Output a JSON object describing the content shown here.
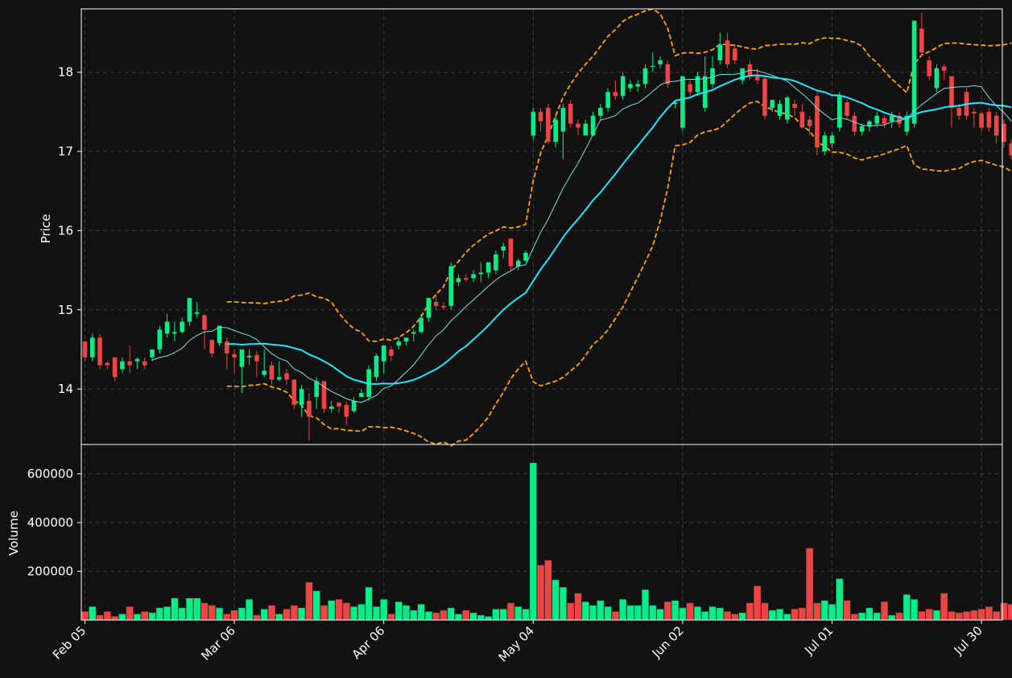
{
  "chart_data": {
    "type": "candlestick",
    "ylabel_price": "Price",
    "ylabel_volume": "Volume",
    "price_ylim": [
      13.3,
      18.8
    ],
    "price_yticks": [
      "14",
      "15",
      "16",
      "17",
      "18"
    ],
    "volume_ylim": [
      0,
      720000
    ],
    "volume_yticks": [
      "200000",
      "400000",
      "600000"
    ],
    "x_tick_labels": [
      "Feb 05",
      "Mar 06",
      "Apr 06",
      "May 04",
      "Jun 02",
      "Jul 01",
      "Jul 30"
    ],
    "x_tick_index": [
      0,
      20,
      40,
      60,
      80,
      100,
      120
    ],
    "grid": true,
    "colors": {
      "background": "#111111",
      "up": "#00ee88",
      "down": "#ee4444",
      "ma_fast": "#7fe0e0",
      "ma_slow": "#22e6ff",
      "bands": "#ffa500",
      "grid": "#3a3a3a",
      "frame": "#ffffff"
    },
    "candles": [
      [
        14.6,
        14.4,
        14.6,
        14.35
      ],
      [
        14.4,
        14.65,
        14.7,
        14.35
      ],
      [
        14.65,
        14.3,
        14.7,
        14.25
      ],
      [
        14.33,
        14.3,
        14.35,
        14.25
      ],
      [
        14.4,
        14.15,
        14.4,
        14.1
      ],
      [
        14.25,
        14.35,
        14.4,
        14.2
      ],
      [
        14.35,
        14.3,
        14.55,
        14.2
      ],
      [
        14.35,
        14.38,
        14.4,
        14.25
      ],
      [
        14.35,
        14.3,
        14.4,
        14.25
      ],
      [
        14.4,
        14.5,
        14.5,
        14.35
      ],
      [
        14.5,
        14.75,
        14.8,
        14.45
      ],
      [
        14.7,
        14.85,
        14.95,
        14.65
      ],
      [
        14.7,
        14.72,
        14.85,
        14.6
      ],
      [
        14.72,
        14.85,
        14.9,
        14.7
      ],
      [
        14.85,
        15.15,
        15.15,
        14.8
      ],
      [
        14.95,
        14.97,
        15.1,
        14.9
      ],
      [
        14.93,
        14.75,
        14.95,
        14.5
      ],
      [
        14.62,
        14.45,
        14.62,
        14.4
      ],
      [
        14.58,
        14.8,
        14.8,
        14.55
      ],
      [
        14.6,
        14.45,
        14.65,
        14.25
      ],
      [
        14.44,
        14.4,
        14.5,
        14.2
      ],
      [
        14.28,
        14.5,
        14.5,
        13.95
      ],
      [
        14.4,
        14.42,
        14.5,
        14.3
      ],
      [
        14.43,
        14.35,
        14.48,
        14.15
      ],
      [
        14.18,
        14.23,
        14.5,
        14.15
      ],
      [
        14.3,
        14.12,
        14.35,
        14.05
      ],
      [
        14.12,
        14.15,
        14.35,
        14.1
      ],
      [
        14.2,
        14.12,
        14.25,
        14.05
      ],
      [
        14.12,
        13.8,
        14.12,
        13.75
      ],
      [
        13.8,
        14.0,
        14.05,
        13.65
      ],
      [
        13.85,
        13.65,
        13.95,
        13.35
      ],
      [
        13.9,
        14.1,
        14.15,
        13.75
      ],
      [
        14.1,
        13.75,
        14.1,
        13.7
      ],
      [
        13.75,
        13.78,
        13.85,
        13.7
      ],
      [
        13.83,
        13.78,
        13.8,
        13.7
      ],
      [
        13.8,
        13.65,
        13.85,
        13.55
      ],
      [
        13.72,
        13.85,
        13.9,
        13.7
      ],
      [
        13.9,
        13.95,
        14.0,
        13.9
      ],
      [
        13.9,
        14.25,
        14.3,
        13.85
      ],
      [
        14.15,
        14.42,
        14.45,
        14.1
      ],
      [
        14.35,
        14.55,
        14.55,
        14.2
      ],
      [
        14.5,
        14.42,
        14.55,
        14.35
      ],
      [
        14.55,
        14.6,
        14.65,
        14.5
      ],
      [
        14.6,
        14.65,
        14.65,
        14.55
      ],
      [
        14.7,
        14.72,
        14.75,
        14.6
      ],
      [
        14.72,
        14.9,
        14.95,
        14.7
      ],
      [
        14.9,
        15.15,
        15.15,
        14.85
      ],
      [
        15.1,
        15.05,
        15.2,
        15.0
      ],
      [
        15.05,
        15.03,
        15.1,
        15.0
      ],
      [
        15.05,
        15.55,
        15.6,
        15.0
      ],
      [
        15.35,
        15.4,
        15.45,
        15.3
      ],
      [
        15.4,
        15.38,
        15.45,
        15.35
      ],
      [
        15.4,
        15.45,
        15.5,
        15.35
      ],
      [
        15.45,
        15.47,
        15.6,
        15.35
      ],
      [
        15.47,
        15.6,
        15.6,
        15.4
      ],
      [
        15.5,
        15.7,
        15.75,
        15.45
      ],
      [
        15.75,
        15.8,
        15.85,
        15.65
      ],
      [
        15.9,
        15.55,
        15.9,
        15.5
      ],
      [
        15.55,
        15.62,
        15.65,
        15.5
      ],
      [
        15.62,
        15.72,
        15.75,
        15.6
      ],
      [
        17.2,
        17.5,
        17.55,
        17.15
      ],
      [
        17.5,
        17.38,
        17.55,
        17.25
      ],
      [
        17.55,
        17.12,
        17.6,
        17.1
      ],
      [
        17.12,
        17.4,
        17.45,
        17.05
      ],
      [
        17.25,
        17.55,
        17.6,
        16.9
      ],
      [
        17.6,
        17.35,
        17.65,
        17.3
      ],
      [
        17.35,
        17.3,
        17.4,
        17.2
      ],
      [
        17.2,
        17.35,
        17.4,
        17.2
      ],
      [
        17.2,
        17.45,
        17.5,
        17.2
      ],
      [
        17.45,
        17.55,
        17.6,
        17.4
      ],
      [
        17.55,
        17.75,
        17.8,
        17.5
      ],
      [
        17.75,
        17.7,
        17.9,
        17.65
      ],
      [
        17.7,
        17.95,
        18.0,
        17.65
      ],
      [
        17.8,
        17.85,
        17.9,
        17.75
      ],
      [
        17.82,
        17.85,
        17.9,
        17.75
      ],
      [
        17.85,
        18.05,
        18.1,
        17.8
      ],
      [
        18.07,
        18.08,
        18.25,
        18.0
      ],
      [
        18.1,
        18.15,
        18.2,
        18.05
      ],
      [
        18.1,
        17.85,
        18.15,
        17.8
      ],
      [
        17.6,
        17.62,
        17.65,
        17.55
      ],
      [
        17.3,
        17.95,
        17.95,
        17.25
      ],
      [
        17.85,
        17.75,
        17.9,
        17.7
      ],
      [
        17.75,
        17.95,
        18.0,
        17.7
      ],
      [
        17.55,
        17.95,
        18.2,
        17.5
      ],
      [
        17.85,
        18.05,
        18.2,
        17.8
      ],
      [
        18.15,
        18.35,
        18.5,
        18.1
      ],
      [
        18.4,
        18.1,
        18.5,
        18.05
      ],
      [
        18.3,
        18.15,
        18.35,
        18.1
      ],
      [
        17.9,
        18.05,
        18.05,
        17.85
      ],
      [
        18.1,
        17.95,
        18.15,
        17.9
      ],
      [
        17.95,
        17.9,
        18.05,
        17.85
      ],
      [
        17.92,
        17.45,
        17.95,
        17.4
      ],
      [
        17.55,
        17.65,
        17.65,
        17.5
      ],
      [
        17.45,
        17.6,
        17.65,
        17.4
      ],
      [
        17.4,
        17.68,
        17.7,
        17.35
      ],
      [
        17.6,
        17.55,
        17.65,
        17.45
      ],
      [
        17.5,
        17.3,
        17.6,
        17.3
      ],
      [
        17.4,
        17.32,
        17.45,
        17.2
      ],
      [
        17.7,
        17.05,
        17.75,
        16.95
      ],
      [
        17.0,
        17.2,
        17.25,
        16.95
      ],
      [
        17.1,
        17.2,
        17.25,
        17.05
      ],
      [
        17.3,
        17.7,
        17.75,
        17.25
      ],
      [
        17.62,
        17.45,
        17.65,
        17.4
      ],
      [
        17.45,
        17.25,
        17.5,
        17.2
      ],
      [
        17.25,
        17.32,
        17.35,
        17.2
      ],
      [
        17.32,
        17.38,
        17.4,
        17.25
      ],
      [
        17.35,
        17.45,
        17.5,
        17.3
      ],
      [
        17.42,
        17.35,
        17.45,
        17.3
      ],
      [
        17.38,
        17.45,
        17.5,
        17.3
      ],
      [
        17.45,
        17.35,
        17.5,
        17.3
      ],
      [
        17.25,
        17.45,
        17.5,
        17.2
      ],
      [
        17.35,
        18.65,
        18.65,
        17.3
      ],
      [
        18.55,
        18.25,
        18.75,
        18.2
      ],
      [
        18.15,
        17.95,
        18.2,
        17.9
      ],
      [
        17.8,
        18.05,
        18.1,
        17.75
      ],
      [
        18.07,
        18.02,
        18.1,
        17.9
      ],
      [
        17.95,
        17.55,
        17.95,
        17.3
      ],
      [
        17.55,
        17.45,
        17.6,
        17.4
      ],
      [
        17.75,
        17.45,
        17.8,
        17.4
      ],
      [
        17.5,
        17.48,
        17.55,
        17.3
      ],
      [
        17.48,
        17.3,
        17.5,
        17.25
      ],
      [
        17.5,
        17.3,
        17.55,
        17.25
      ],
      [
        17.45,
        17.2,
        17.5,
        17.1
      ],
      [
        17.35,
        17.12,
        17.4,
        17.05
      ],
      [
        17.1,
        16.95,
        17.15,
        16.9
      ]
    ],
    "volume": [
      35000,
      55000,
      20000,
      35000,
      15000,
      25000,
      55000,
      25000,
      35000,
      30000,
      50000,
      55000,
      90000,
      50000,
      90000,
      90000,
      70000,
      60000,
      50000,
      25000,
      40000,
      50000,
      85000,
      20000,
      45000,
      60000,
      25000,
      45000,
      60000,
      50000,
      155000,
      120000,
      60000,
      80000,
      85000,
      70000,
      55000,
      65000,
      135000,
      55000,
      85000,
      25000,
      75000,
      60000,
      40000,
      65000,
      35000,
      30000,
      40000,
      50000,
      25000,
      40000,
      30000,
      20000,
      15000,
      45000,
      45000,
      70000,
      55000,
      45000,
      645000,
      225000,
      245000,
      165000,
      135000,
      70000,
      110000,
      75000,
      60000,
      80000,
      55000,
      35000,
      85000,
      60000,
      60000,
      125000,
      60000,
      45000,
      75000,
      80000,
      50000,
      70000,
      55000,
      35000,
      55000,
      50000,
      35000,
      25000,
      30000,
      70000,
      140000,
      70000,
      40000,
      45000,
      25000,
      45000,
      50000,
      295000,
      70000,
      80000,
      65000,
      170000,
      80000,
      25000,
      30000,
      50000,
      30000,
      75000,
      20000,
      30000,
      105000,
      85000,
      35000,
      45000,
      40000,
      110000,
      35000,
      30000,
      35000,
      40000,
      45000,
      55000,
      35000,
      70000,
      65000
    ]
  }
}
